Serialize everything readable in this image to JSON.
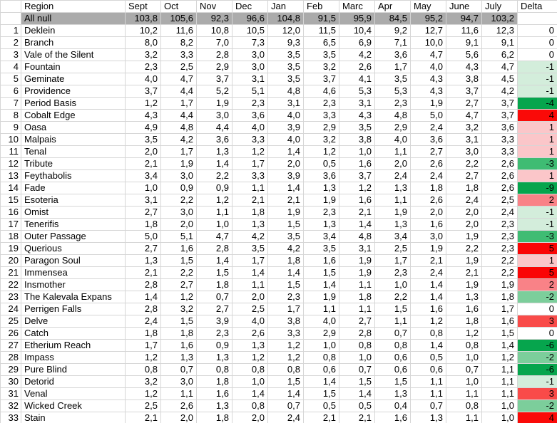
{
  "table": {
    "corner_label": "",
    "columns": [
      "Region",
      "Sept",
      "Oct",
      "Nov",
      "Dec",
      "Jan",
      "Feb",
      "Marc",
      "Apr",
      "May",
      "June",
      "July",
      "Delta"
    ],
    "summary_row": {
      "label": "All null",
      "values": [
        "103,8",
        "105,6",
        "92,3",
        "96,6",
        "104,8",
        "91,5",
        "95,9",
        "84,5",
        "95,2",
        "94,7",
        "103,2"
      ],
      "delta": ""
    },
    "rows": [
      {
        "num": "1",
        "region": "Deklein",
        "values": [
          "10,2",
          "11,6",
          "10,8",
          "10,5",
          "12,0",
          "11,5",
          "10,4",
          "9,2",
          "12,7",
          "11,6",
          "12,3"
        ],
        "delta": "0"
      },
      {
        "num": "2",
        "region": "Branch",
        "values": [
          "8,0",
          "8,2",
          "7,0",
          "7,3",
          "9,3",
          "6,5",
          "6,9",
          "7,1",
          "10,0",
          "9,1",
          "9,1"
        ],
        "delta": "0"
      },
      {
        "num": "3",
        "region": "Vale of the Silent",
        "values": [
          "3,2",
          "3,3",
          "2,8",
          "3,0",
          "3,5",
          "3,5",
          "4,2",
          "3,6",
          "4,7",
          "5,6",
          "6,2"
        ],
        "delta": "0"
      },
      {
        "num": "4",
        "region": "Fountain",
        "values": [
          "2,3",
          "2,5",
          "2,9",
          "3,0",
          "3,5",
          "3,2",
          "2,6",
          "1,7",
          "4,0",
          "4,3",
          "4,7"
        ],
        "delta": "-1"
      },
      {
        "num": "5",
        "region": "Geminate",
        "values": [
          "4,0",
          "4,7",
          "3,7",
          "3,1",
          "3,5",
          "3,7",
          "4,1",
          "3,5",
          "4,3",
          "3,8",
          "4,5"
        ],
        "delta": "-1"
      },
      {
        "num": "6",
        "region": "Providence",
        "values": [
          "3,7",
          "4,4",
          "5,2",
          "5,1",
          "4,8",
          "4,6",
          "5,3",
          "5,3",
          "4,3",
          "3,7",
          "4,2"
        ],
        "delta": "-1"
      },
      {
        "num": "7",
        "region": "Period Basis",
        "values": [
          "1,2",
          "1,7",
          "1,9",
          "2,3",
          "3,1",
          "2,3",
          "3,1",
          "2,3",
          "1,9",
          "2,7",
          "3,7"
        ],
        "delta": "-4"
      },
      {
        "num": "8",
        "region": "Cobalt Edge",
        "values": [
          "4,3",
          "4,4",
          "3,0",
          "3,6",
          "4,0",
          "3,3",
          "4,3",
          "4,8",
          "5,0",
          "4,7",
          "3,7"
        ],
        "delta": "4"
      },
      {
        "num": "9",
        "region": "Oasa",
        "values": [
          "4,9",
          "4,8",
          "4,4",
          "4,0",
          "3,9",
          "2,9",
          "3,5",
          "2,9",
          "2,4",
          "3,2",
          "3,6"
        ],
        "delta": "1"
      },
      {
        "num": "10",
        "region": "Malpais",
        "values": [
          "3,5",
          "4,2",
          "3,6",
          "3,3",
          "4,0",
          "3,2",
          "3,8",
          "4,0",
          "3,6",
          "3,1",
          "3,3"
        ],
        "delta": "1"
      },
      {
        "num": "11",
        "region": "Tenal",
        "values": [
          "2,0",
          "1,7",
          "1,3",
          "1,2",
          "1,4",
          "1,2",
          "1,0",
          "1,1",
          "2,7",
          "3,0",
          "3,3"
        ],
        "delta": "1"
      },
      {
        "num": "12",
        "region": "Tribute",
        "values": [
          "2,1",
          "1,9",
          "1,4",
          "1,7",
          "2,0",
          "0,5",
          "1,6",
          "2,0",
          "2,6",
          "2,2",
          "2,6"
        ],
        "delta": "-3"
      },
      {
        "num": "13",
        "region": "Feythabolis",
        "values": [
          "3,4",
          "3,0",
          "2,2",
          "3,3",
          "3,9",
          "3,6",
          "3,7",
          "2,4",
          "2,4",
          "2,7",
          "2,6"
        ],
        "delta": "1"
      },
      {
        "num": "14",
        "region": "Fade",
        "values": [
          "1,0",
          "0,9",
          "0,9",
          "1,1",
          "1,4",
          "1,3",
          "1,2",
          "1,3",
          "1,8",
          "1,8",
          "2,6"
        ],
        "delta": "-9"
      },
      {
        "num": "15",
        "region": "Esoteria",
        "values": [
          "3,1",
          "2,2",
          "1,2",
          "2,1",
          "2,1",
          "1,9",
          "1,6",
          "1,1",
          "2,6",
          "2,4",
          "2,5"
        ],
        "delta": "2"
      },
      {
        "num": "16",
        "region": "Omist",
        "values": [
          "2,7",
          "3,0",
          "1,1",
          "1,8",
          "1,9",
          "2,3",
          "2,1",
          "1,9",
          "2,0",
          "2,0",
          "2,4"
        ],
        "delta": "-1"
      },
      {
        "num": "17",
        "region": "Tenerifis",
        "values": [
          "1,8",
          "2,0",
          "1,0",
          "1,3",
          "1,5",
          "1,3",
          "1,4",
          "1,3",
          "1,6",
          "2,0",
          "2,3"
        ],
        "delta": "-1"
      },
      {
        "num": "18",
        "region": "Outer Passage",
        "values": [
          "5,0",
          "5,1",
          "4,7",
          "4,2",
          "3,5",
          "3,4",
          "4,8",
          "3,4",
          "3,0",
          "1,9",
          "2,3"
        ],
        "delta": "-3"
      },
      {
        "num": "19",
        "region": "Querious",
        "values": [
          "2,7",
          "1,6",
          "2,8",
          "3,5",
          "4,2",
          "3,5",
          "3,1",
          "2,5",
          "1,9",
          "2,2",
          "2,3"
        ],
        "delta": "5"
      },
      {
        "num": "20",
        "region": "Paragon Soul",
        "values": [
          "1,3",
          "1,5",
          "1,4",
          "1,7",
          "1,8",
          "1,6",
          "1,9",
          "1,7",
          "2,1",
          "1,9",
          "2,2"
        ],
        "delta": "1"
      },
      {
        "num": "21",
        "region": "Immensea",
        "values": [
          "2,1",
          "2,2",
          "1,5",
          "1,4",
          "1,4",
          "1,5",
          "1,9",
          "2,3",
          "2,4",
          "2,1",
          "2,2"
        ],
        "delta": "5"
      },
      {
        "num": "22",
        "region": "Insmother",
        "values": [
          "2,8",
          "2,7",
          "1,8",
          "1,1",
          "1,5",
          "1,4",
          "1,1",
          "1,0",
          "1,4",
          "1,9",
          "1,9"
        ],
        "delta": "2"
      },
      {
        "num": "23",
        "region": "The Kalevala Expans",
        "values": [
          "1,4",
          "1,2",
          "0,7",
          "2,0",
          "2,3",
          "1,9",
          "1,8",
          "2,2",
          "1,4",
          "1,3",
          "1,8"
        ],
        "delta": "-2"
      },
      {
        "num": "24",
        "region": "Perrigen Falls",
        "values": [
          "2,8",
          "3,2",
          "2,7",
          "2,5",
          "1,7",
          "1,1",
          "1,1",
          "1,5",
          "1,6",
          "1,6",
          "1,7"
        ],
        "delta": "0"
      },
      {
        "num": "25",
        "region": "Delve",
        "values": [
          "2,4",
          "1,5",
          "3,9",
          "4,0",
          "3,8",
          "4,0",
          "2,7",
          "1,1",
          "1,2",
          "1,8",
          "1,6"
        ],
        "delta": "3"
      },
      {
        "num": "26",
        "region": "Catch",
        "values": [
          "1,8",
          "1,8",
          "2,3",
          "2,6",
          "3,3",
          "2,9",
          "2,8",
          "0,7",
          "0,8",
          "1,2",
          "1,5"
        ],
        "delta": "0"
      },
      {
        "num": "27",
        "region": "Etherium Reach",
        "values": [
          "1,7",
          "1,6",
          "0,9",
          "1,3",
          "1,2",
          "1,0",
          "0,8",
          "0,8",
          "1,4",
          "0,8",
          "1,4"
        ],
        "delta": "-6"
      },
      {
        "num": "28",
        "region": "Impass",
        "values": [
          "1,2",
          "1,3",
          "1,3",
          "1,2",
          "1,2",
          "0,8",
          "1,0",
          "0,6",
          "0,5",
          "1,0",
          "1,2"
        ],
        "delta": "-2"
      },
      {
        "num": "29",
        "region": "Pure Blind",
        "values": [
          "0,8",
          "0,7",
          "0,8",
          "0,8",
          "0,8",
          "0,6",
          "0,7",
          "0,6",
          "0,6",
          "0,7",
          "1,1"
        ],
        "delta": "-6"
      },
      {
        "num": "30",
        "region": "Detorid",
        "values": [
          "3,2",
          "3,0",
          "1,8",
          "1,0",
          "1,5",
          "1,4",
          "1,5",
          "1,5",
          "1,1",
          "1,0",
          "1,1"
        ],
        "delta": "-1"
      },
      {
        "num": "31",
        "region": "Venal",
        "values": [
          "1,2",
          "1,1",
          "1,6",
          "1,4",
          "1,4",
          "1,5",
          "1,4",
          "1,3",
          "1,1",
          "1,1",
          "1,1"
        ],
        "delta": "3"
      },
      {
        "num": "32",
        "region": "Wicked Creek",
        "values": [
          "2,5",
          "2,6",
          "1,3",
          "0,8",
          "0,7",
          "0,5",
          "0,5",
          "0,4",
          "0,7",
          "0,8",
          "1,0"
        ],
        "delta": "-2"
      },
      {
        "num": "33",
        "region": "Stain",
        "values": [
          "2,1",
          "2,0",
          "1,8",
          "2,0",
          "2,4",
          "2,1",
          "2,1",
          "1,6",
          "1,3",
          "1,1",
          "1,0"
        ],
        "delta": "4"
      }
    ],
    "colors": {
      "summary_bg": "#ababab",
      "grid": "#d6d6d6",
      "delta_scale": {
        "-9": "#06a54d",
        "-6": "#06a54d",
        "-4": "#06a54d",
        "-3": "#3fbc73",
        "-2": "#7cce9b",
        "-1": "#d3eddb",
        "0": "#ffffff",
        "1": "#fbc6c9",
        "2": "#f98287",
        "3": "#f94b49",
        "4": "#fa0a08",
        "5": "#fa0505"
      }
    }
  }
}
